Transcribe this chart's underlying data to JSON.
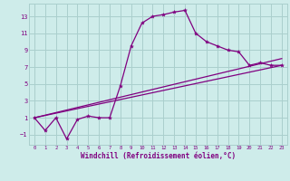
{
  "bg_color": "#ceecea",
  "grid_color": "#aacfcd",
  "line_color": "#800080",
  "xlabel": "Windchill (Refroidissement éolien,°C)",
  "xlim": [
    -0.5,
    23.5
  ],
  "ylim": [
    -2.2,
    14.5
  ],
  "yticks": [
    -1,
    1,
    3,
    5,
    7,
    9,
    11,
    13
  ],
  "xticks": [
    0,
    1,
    2,
    3,
    4,
    5,
    6,
    7,
    8,
    9,
    10,
    11,
    12,
    13,
    14,
    15,
    16,
    17,
    18,
    19,
    20,
    21,
    22,
    23
  ],
  "series1_x": [
    0,
    1,
    2,
    3,
    4,
    5,
    6,
    7,
    8,
    9,
    10,
    11,
    12,
    13,
    14,
    15,
    16,
    17,
    18,
    19,
    20,
    21,
    22,
    23
  ],
  "series1_y": [
    1.0,
    -0.5,
    1.0,
    -1.5,
    0.8,
    1.2,
    1.0,
    1.0,
    4.8,
    9.5,
    12.2,
    13.0,
    13.2,
    13.5,
    13.7,
    11.0,
    10.0,
    9.5,
    9.0,
    8.8,
    7.2,
    7.5,
    7.2,
    7.2
  ],
  "series2_x": [
    0,
    23
  ],
  "series2_y": [
    1.0,
    7.2
  ],
  "series3_x": [
    0,
    23
  ],
  "series3_y": [
    1.0,
    8.0
  ]
}
